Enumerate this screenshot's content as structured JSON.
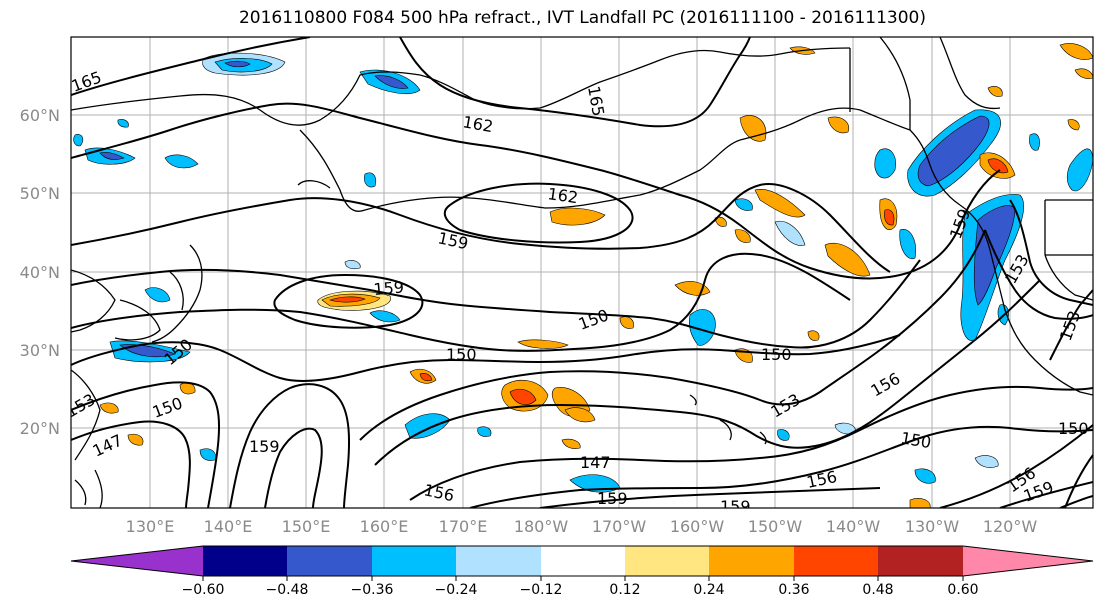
{
  "title": "2016110800 F084 500 hPa refract., IVT Landfall PC (2016111100 - 2016111300)",
  "map": {
    "lon_labels": [
      "130°E",
      "140°E",
      "150°E",
      "160°E",
      "170°E",
      "180°W",
      "170°W",
      "160°W",
      "150°W",
      "140°W",
      "130°W",
      "120°W"
    ],
    "lat_labels": [
      "60°N",
      "50°N",
      "40°N",
      "30°N",
      "20°N"
    ],
    "contour_labels": [
      "165",
      "162",
      "162",
      "159",
      "159",
      "150",
      "150",
      "150",
      "153",
      "156",
      "150",
      "150",
      "147",
      "147",
      "159",
      "156",
      "156",
      "159",
      "153",
      "150",
      "156",
      "159",
      "153",
      "165",
      "159",
      "153",
      "150",
      "159"
    ]
  },
  "colorbar": {
    "tick_labels": [
      "−0.60",
      "−0.48",
      "−0.36",
      "−0.24",
      "−0.12",
      "0.12",
      "0.24",
      "0.36",
      "0.48",
      "0.60"
    ],
    "colors": [
      "#9932cc",
      "#00008b",
      "#3558cc",
      "#00bfff",
      "#b0e2ff",
      "#ffffff",
      "#ffe680",
      "#ffa500",
      "#ff4500",
      "#b22222",
      "#ff88aa"
    ]
  }
}
